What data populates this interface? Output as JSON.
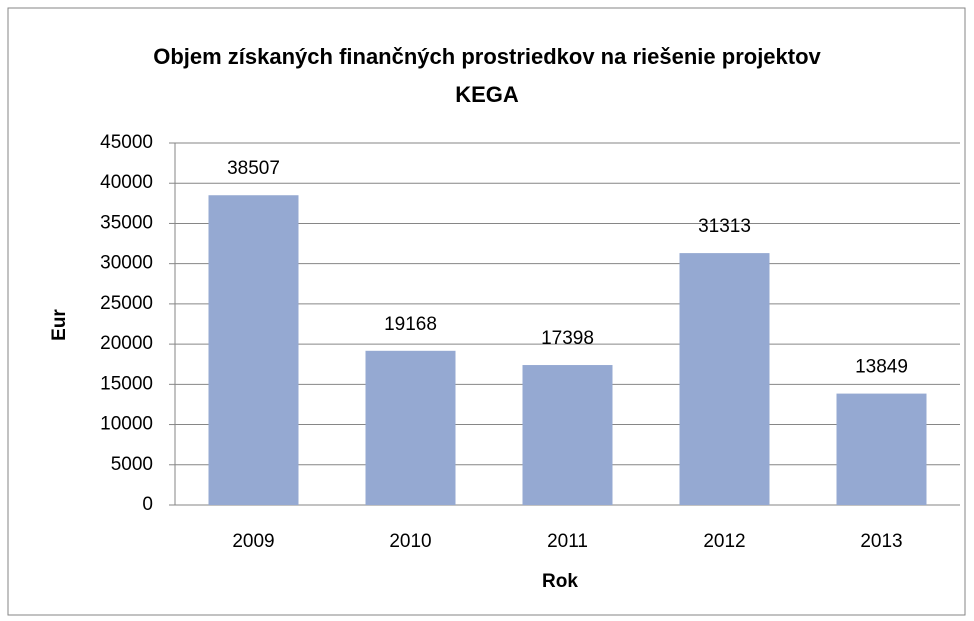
{
  "chart_data": {
    "type": "bar",
    "title": "Objem získaných finančných prostriedkov na riešenie projektov KEGA",
    "xlabel": "Rok",
    "ylabel": "Eur",
    "categories": [
      "2009",
      "2010",
      "2011",
      "2012",
      "2013"
    ],
    "values": [
      38507,
      19168,
      17398,
      31313,
      13849
    ],
    "color": "#95a9d2",
    "ylim": [
      0,
      45000
    ],
    "yticks": [
      0,
      5000,
      10000,
      15000,
      20000,
      25000,
      30000,
      35000,
      40000,
      45000
    ],
    "grid": true
  }
}
